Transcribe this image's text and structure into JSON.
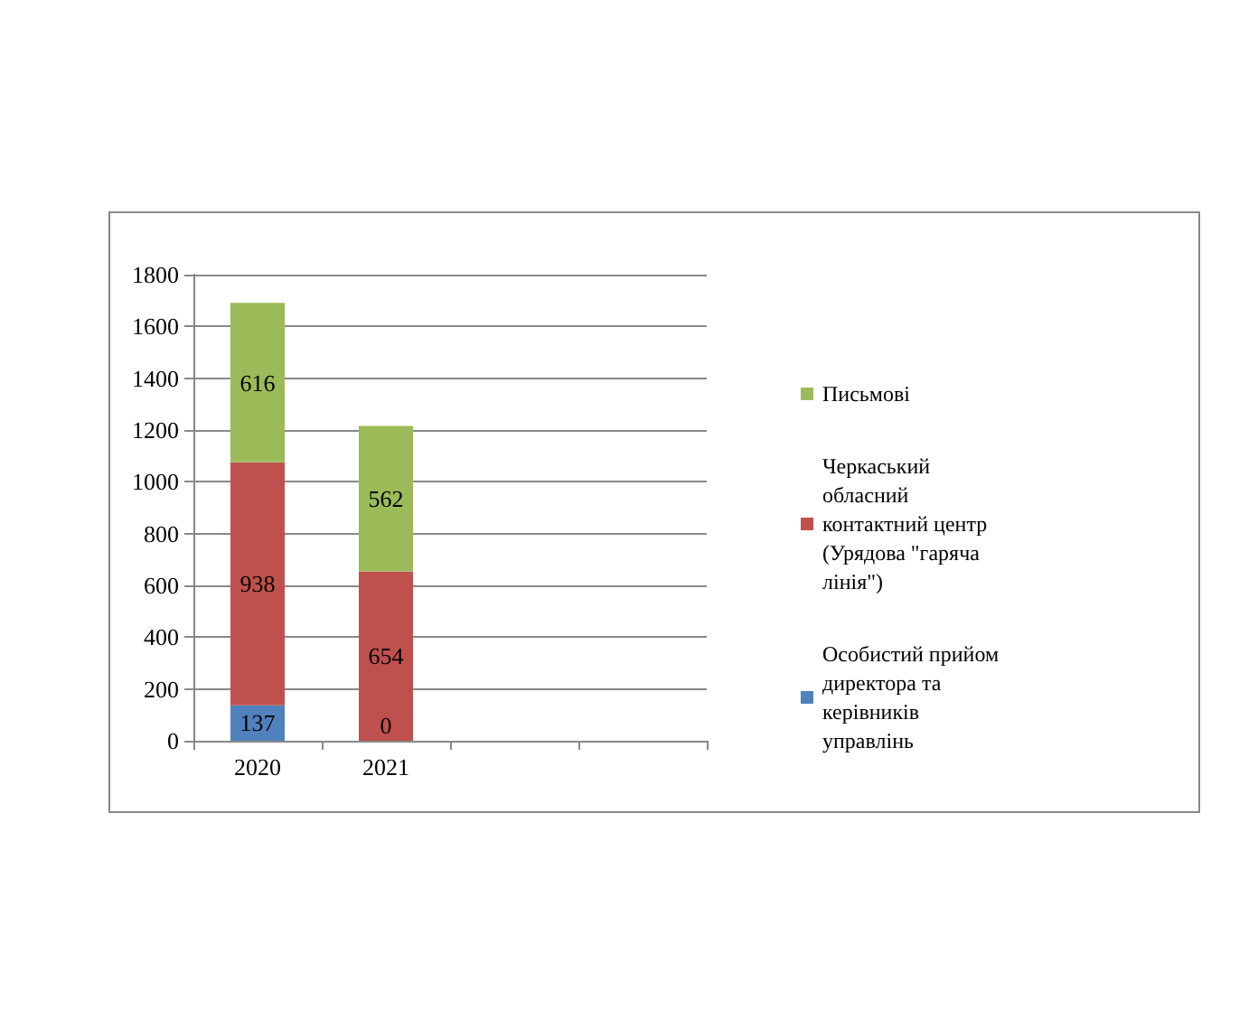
{
  "chart_data": {
    "type": "bar",
    "stacked": true,
    "categories": [
      "2020",
      "2021",
      null,
      null
    ],
    "series": [
      {
        "name": "Особистий прийом директора та керівників  управлінь",
        "color": "#4f81bd",
        "values": [
          137,
          0,
          null,
          null
        ]
      },
      {
        "name": "Черкаський обласний контактний центр (Урядова \"гаряча лінія\")",
        "color": "#c0504d",
        "values": [
          938,
          654,
          null,
          null
        ]
      },
      {
        "name": "Письмові",
        "color": "#9bbb59",
        "values": [
          616,
          562,
          null,
          null
        ]
      }
    ],
    "ylim": [
      0,
      1800
    ],
    "yticks": [
      0,
      200,
      400,
      600,
      800,
      1000,
      1200,
      1400,
      1600,
      1800
    ],
    "grid": "y",
    "legend": "right",
    "data_labels": true
  }
}
